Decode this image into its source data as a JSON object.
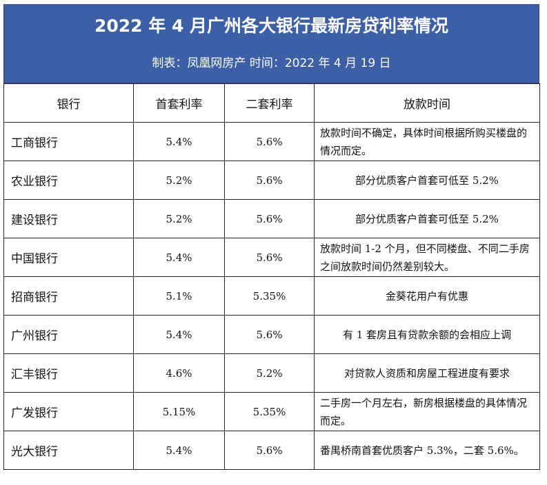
{
  "header": {
    "title": "2022 年 4 月广州各大银行最新房贷利率情况",
    "subtitle": "制表：凤凰网房产   时间：2022 年 4 月 19 日"
  },
  "table": {
    "columns": [
      "银行",
      "首套利率",
      "二套利率",
      "放款时间"
    ],
    "rows": [
      [
        "工商银行",
        "5.4%",
        "5.6%",
        "放款时间不确定，具体时间根据所购买楼盘的情况而定。"
      ],
      [
        "农业银行",
        "5.2%",
        "5.6%",
        "部分优质客户首套可低至 5.2%"
      ],
      [
        "建设银行",
        "5.2%",
        "5.6%",
        "部分优质客户首套可低至 5.2%"
      ],
      [
        "中国银行",
        "5.4%",
        "5.6%",
        "放款时间 1-2 个月，但不同楼盘、不同二手房之间放款时间仍然差别较大。"
      ],
      [
        "招商银行",
        "5.1%",
        "5.35%",
        "金葵花用户有优惠"
      ],
      [
        "广州银行",
        "5.4%",
        "5.6%",
        "有 1 套房且有贷款余额的会相应上调"
      ],
      [
        "汇丰银行",
        "4.6%",
        "5.2%",
        "对贷款人资质和房屋工程进度有要求"
      ],
      [
        "广发银行",
        "5.15%",
        "5.35%",
        "二手房一个月左右，新房根据楼盘的具体情况而定。"
      ],
      [
        "光大银行",
        "5.4%",
        "5.6%",
        "番禺桥南首套优质客户 5.3%，二套 5.6%。"
      ]
    ]
  }
}
